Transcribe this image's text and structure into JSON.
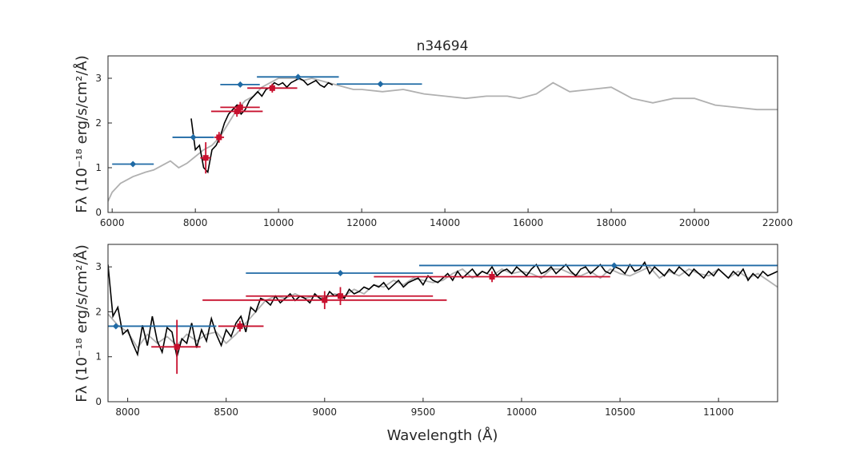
{
  "title": "n34694",
  "colors": {
    "model": "#b0b0b0",
    "spectrum": "#000000",
    "photometry": "#1f6aa5",
    "synthetic": "#c8102e"
  },
  "chart_data": [
    {
      "type": "line",
      "title": "n34694",
      "xlabel": "",
      "ylabel": "Fλ (10⁻¹⁸ erg/s/cm²/Å)",
      "xlim": [
        5900,
        22000
      ],
      "ylim": [
        0,
        3.5
      ],
      "xticks": [
        6000,
        8000,
        10000,
        12000,
        14000,
        16000,
        18000,
        20000,
        22000
      ],
      "yticks": [
        0,
        1,
        2,
        3
      ],
      "grid": false,
      "legend": "none",
      "model": {
        "x": [
          5900,
          6000,
          6200,
          6500,
          6800,
          7000,
          7200,
          7400,
          7600,
          7800,
          8000,
          8200,
          8400,
          8600,
          8800,
          9000,
          9200,
          9400,
          9600,
          9800,
          10000,
          10200,
          10400,
          10600,
          10800,
          11000,
          11200,
          11400,
          11600,
          11800,
          12000,
          12500,
          13000,
          13500,
          14000,
          14500,
          15000,
          15500,
          15800,
          16200,
          16600,
          17000,
          17500,
          18000,
          18500,
          19000,
          19500,
          20000,
          20500,
          21000,
          21500,
          22000
        ],
        "y": [
          0.25,
          0.45,
          0.65,
          0.8,
          0.9,
          0.95,
          1.05,
          1.15,
          1.0,
          1.1,
          1.25,
          1.4,
          1.5,
          1.7,
          2.0,
          2.3,
          2.5,
          2.6,
          2.8,
          2.9,
          3.0,
          3.0,
          3.0,
          2.95,
          3.0,
          2.95,
          2.9,
          2.85,
          2.8,
          2.75,
          2.75,
          2.7,
          2.75,
          2.65,
          2.6,
          2.55,
          2.6,
          2.6,
          2.55,
          2.65,
          2.9,
          2.7,
          2.75,
          2.8,
          2.55,
          2.45,
          2.55,
          2.55,
          2.4,
          2.35,
          2.3,
          2.3
        ]
      },
      "spectrum": {
        "x": [
          7900,
          8000,
          8100,
          8200,
          8300,
          8400,
          8500,
          8600,
          8700,
          8800,
          8900,
          9000,
          9100,
          9200,
          9300,
          9400,
          9500,
          9600,
          9700,
          9800,
          9900,
          10000,
          10100,
          10200,
          10300,
          10400,
          10500,
          10600,
          10700,
          10800,
          10900,
          11000,
          11100,
          11200,
          11300
        ],
        "y": [
          2.1,
          1.4,
          1.5,
          1.0,
          0.9,
          1.4,
          1.5,
          1.7,
          2.0,
          2.2,
          2.3,
          2.4,
          2.2,
          2.3,
          2.5,
          2.6,
          2.7,
          2.6,
          2.75,
          2.8,
          2.9,
          2.85,
          2.9,
          2.8,
          2.9,
          2.95,
          3.0,
          2.95,
          2.85,
          2.9,
          2.95,
          2.85,
          2.8,
          2.9,
          2.85
        ]
      },
      "photometry": [
        {
          "x": 6500,
          "y": 1.08,
          "xmin": 6000,
          "xmax": 7000
        },
        {
          "x": 7950,
          "y": 1.68,
          "xmin": 7450,
          "xmax": 8450
        },
        {
          "x": 9080,
          "y": 2.86,
          "xmin": 8600,
          "xmax": 9550
        },
        {
          "x": 10470,
          "y": 3.03,
          "xmin": 9480,
          "xmax": 11450
        },
        {
          "x": 12450,
          "y": 2.87,
          "xmin": 11400,
          "xmax": 13450
        }
      ],
      "synthetic": [
        {
          "x": 8250,
          "y": 1.22,
          "xmin": 8120,
          "xmax": 8370,
          "yerr": 0.35
        },
        {
          "x": 8570,
          "y": 1.68,
          "xmin": 8460,
          "xmax": 8690,
          "yerr": 0.12
        },
        {
          "x": 9000,
          "y": 2.26,
          "xmin": 8380,
          "xmax": 9620,
          "yerr": 0.12
        },
        {
          "x": 9080,
          "y": 2.35,
          "xmin": 8600,
          "xmax": 9550,
          "yerr": 0.12
        },
        {
          "x": 9850,
          "y": 2.78,
          "xmin": 9250,
          "xmax": 10450,
          "yerr": 0.1
        }
      ]
    },
    {
      "type": "line",
      "title": "",
      "xlabel": "Wavelength (Å)",
      "ylabel": "Fλ (10⁻¹⁸ erg/s/cm²/Å)",
      "xlim": [
        7900,
        11300
      ],
      "ylim": [
        0,
        3.5
      ],
      "xticks": [
        8000,
        8500,
        9000,
        9500,
        10000,
        10500,
        11000
      ],
      "yticks": [
        0,
        1,
        2,
        3
      ],
      "grid": false,
      "legend": "none",
      "model": {
        "x": [
          7900,
          7950,
          8000,
          8050,
          8100,
          8150,
          8200,
          8250,
          8300,
          8350,
          8400,
          8450,
          8500,
          8550,
          8600,
          8650,
          8700,
          8750,
          8800,
          8850,
          8900,
          8950,
          9000,
          9050,
          9100,
          9150,
          9200,
          9250,
          9300,
          9350,
          9400,
          9450,
          9500,
          9550,
          9600,
          9650,
          9700,
          9750,
          9800,
          9850,
          9900,
          9950,
          10000,
          10050,
          10100,
          10150,
          10200,
          10250,
          10300,
          10350,
          10400,
          10450,
          10500,
          10550,
          10600,
          10650,
          10700,
          10750,
          10800,
          10850,
          10900,
          10950,
          11000,
          11050,
          11100,
          11150,
          11200,
          11250,
          11300
        ],
        "y": [
          1.95,
          1.7,
          1.55,
          1.2,
          1.5,
          1.3,
          1.45,
          1.25,
          1.5,
          1.35,
          1.5,
          1.55,
          1.3,
          1.5,
          1.75,
          2.0,
          2.25,
          2.35,
          2.3,
          2.4,
          2.3,
          2.35,
          2.3,
          2.4,
          2.35,
          2.5,
          2.4,
          2.6,
          2.55,
          2.7,
          2.6,
          2.75,
          2.7,
          2.65,
          2.7,
          2.85,
          2.95,
          2.75,
          2.9,
          2.8,
          2.95,
          2.85,
          2.9,
          2.85,
          2.75,
          2.95,
          2.95,
          2.85,
          2.8,
          2.9,
          2.75,
          2.95,
          2.85,
          2.8,
          2.9,
          3.0,
          2.75,
          2.9,
          2.8,
          2.95,
          2.85,
          2.8,
          2.95,
          2.75,
          2.9,
          2.75,
          2.85,
          2.7,
          2.55
        ]
      },
      "spectrum": {
        "x": [
          7900,
          7925,
          7950,
          7975,
          8000,
          8025,
          8050,
          8075,
          8100,
          8125,
          8150,
          8175,
          8200,
          8225,
          8250,
          8275,
          8300,
          8325,
          8350,
          8375,
          8400,
          8425,
          8450,
          8475,
          8500,
          8525,
          8550,
          8575,
          8600,
          8625,
          8650,
          8675,
          8700,
          8725,
          8750,
          8775,
          8800,
          8825,
          8850,
          8875,
          8900,
          8925,
          8950,
          8975,
          9000,
          9025,
          9050,
          9075,
          9100,
          9125,
          9150,
          9175,
          9200,
          9225,
          9250,
          9275,
          9300,
          9325,
          9350,
          9375,
          9400,
          9425,
          9450,
          9475,
          9500,
          9525,
          9550,
          9575,
          9600,
          9625,
          9650,
          9675,
          9700,
          9725,
          9750,
          9775,
          9800,
          9825,
          9850,
          9875,
          9900,
          9925,
          9950,
          9975,
          10000,
          10025,
          10050,
          10075,
          10100,
          10125,
          10150,
          10175,
          10200,
          10225,
          10250,
          10275,
          10300,
          10325,
          10350,
          10375,
          10400,
          10425,
          10450,
          10475,
          10500,
          10525,
          10550,
          10575,
          10600,
          10625,
          10650,
          10675,
          10700,
          10725,
          10750,
          10775,
          10800,
          10825,
          10850,
          10875,
          10900,
          10925,
          10950,
          10975,
          11000,
          11025,
          11050,
          11075,
          11100,
          11125,
          11150,
          11175,
          11200,
          11225,
          11250,
          11275,
          11300
        ],
        "y": [
          3.05,
          1.9,
          2.1,
          1.5,
          1.6,
          1.3,
          1.05,
          1.7,
          1.25,
          1.9,
          1.35,
          1.1,
          1.65,
          1.55,
          1.0,
          1.4,
          1.3,
          1.75,
          1.2,
          1.6,
          1.35,
          1.85,
          1.5,
          1.25,
          1.6,
          1.45,
          1.75,
          1.9,
          1.55,
          2.1,
          2.0,
          2.3,
          2.25,
          2.15,
          2.35,
          2.2,
          2.3,
          2.4,
          2.25,
          2.35,
          2.3,
          2.2,
          2.4,
          2.3,
          2.25,
          2.45,
          2.35,
          2.4,
          2.3,
          2.5,
          2.4,
          2.45,
          2.55,
          2.5,
          2.6,
          2.55,
          2.65,
          2.5,
          2.6,
          2.7,
          2.55,
          2.65,
          2.7,
          2.75,
          2.6,
          2.8,
          2.7,
          2.65,
          2.75,
          2.85,
          2.7,
          2.9,
          2.75,
          2.85,
          2.95,
          2.8,
          2.9,
          2.85,
          3.0,
          2.8,
          2.9,
          2.95,
          2.85,
          3.0,
          2.9,
          2.8,
          2.95,
          3.05,
          2.85,
          2.9,
          3.0,
          2.85,
          2.95,
          3.05,
          2.9,
          2.8,
          2.95,
          3.0,
          2.85,
          2.95,
          3.05,
          2.9,
          2.85,
          3.0,
          2.95,
          2.85,
          3.05,
          2.9,
          2.95,
          3.1,
          2.85,
          3.0,
          2.9,
          2.8,
          2.95,
          2.85,
          3.0,
          2.9,
          2.8,
          2.95,
          2.85,
          2.75,
          2.9,
          2.8,
          2.95,
          2.85,
          2.75,
          2.9,
          2.8,
          2.95,
          2.7,
          2.85,
          2.75,
          2.9,
          2.8,
          2.85,
          2.9
        ]
      },
      "photometry": [
        {
          "x": 7940,
          "y": 1.68,
          "xmin": 7450,
          "xmax": 8450
        },
        {
          "x": 9080,
          "y": 2.86,
          "xmin": 8600,
          "xmax": 9550
        },
        {
          "x": 10470,
          "y": 3.03,
          "xmin": 9480,
          "xmax": 11450
        }
      ],
      "synthetic": [
        {
          "x": 8250,
          "y": 1.22,
          "xmin": 8120,
          "xmax": 8370,
          "yerr": 0.6
        },
        {
          "x": 8570,
          "y": 1.68,
          "xmin": 8460,
          "xmax": 8690,
          "yerr": 0.12
        },
        {
          "x": 9000,
          "y": 2.26,
          "xmin": 8380,
          "xmax": 9620,
          "yerr": 0.2
        },
        {
          "x": 9080,
          "y": 2.35,
          "xmin": 8600,
          "xmax": 9550,
          "yerr": 0.2
        },
        {
          "x": 9850,
          "y": 2.78,
          "xmin": 9250,
          "xmax": 10450,
          "yerr": 0.12
        }
      ]
    }
  ]
}
